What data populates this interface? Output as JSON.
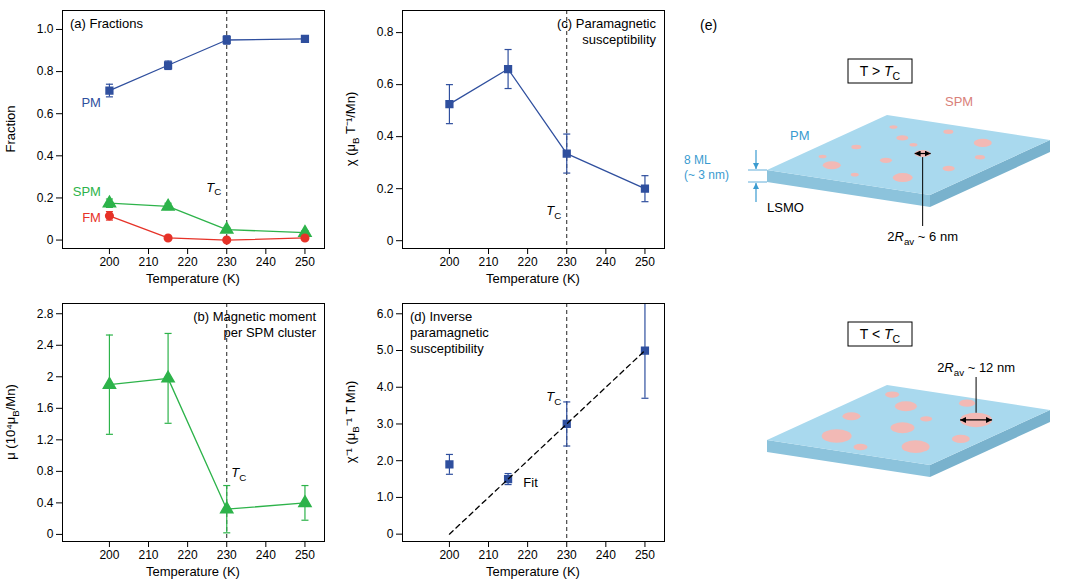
{
  "chart_data": [
    {
      "type": "line",
      "title": "(a) Fractions",
      "x_label": "Temperature (K)",
      "y_label": "Fraction",
      "x": [
        200,
        215,
        230,
        250
      ],
      "series": [
        {
          "name": "PM",
          "color": "#2f4f9e",
          "marker": "square",
          "values": [
            0.71,
            0.83,
            0.95,
            0.955
          ],
          "errors": [
            0.03,
            0.02,
            0.02,
            0.01
          ]
        },
        {
          "name": "SPM",
          "color": "#2db34a",
          "marker": "triangle",
          "values": [
            0.175,
            0.16,
            0.05,
            0.035
          ],
          "errors": [
            0.02,
            0.015,
            0.01,
            0.01
          ]
        },
        {
          "name": "FM",
          "color": "#e63228",
          "marker": "circle",
          "values": [
            0.115,
            0.01,
            0.0,
            0.01
          ],
          "errors": [
            0.02,
            0.005,
            0.005,
            0.005
          ]
        }
      ],
      "xlim": [
        188,
        255
      ],
      "xticks": [
        200,
        210,
        220,
        230,
        240,
        250
      ],
      "ylim": [
        -0.04,
        1.09
      ],
      "yticks": [
        0,
        0.2,
        0.4,
        0.6,
        0.8,
        {
          "value": 1,
          "label": "1.0"
        }
      ],
      "annotations": [
        {
          "type": "vline",
          "x": 230,
          "label": "TC",
          "line_style": "dashed"
        }
      ]
    },
    {
      "type": "line",
      "title": "(b) Magnetic moment per SPM cluster",
      "x_label": "Temperature (K)",
      "y_label": "μ (10⁴μB/Mn)",
      "x": [
        200,
        215,
        230,
        250
      ],
      "series": [
        {
          "color": "#2db34a",
          "marker": "triangle",
          "values": [
            1.9,
            1.98,
            0.32,
            0.4
          ],
          "errors": [
            0.63,
            0.57,
            0.3,
            0.22
          ]
        }
      ],
      "xlim": [
        188,
        255
      ],
      "xticks": [
        200,
        210,
        220,
        230,
        240,
        250
      ],
      "ylim": [
        -0.09,
        2.93
      ],
      "yticks": [
        0,
        0.4,
        0.8,
        1.2,
        1.6,
        2.0,
        2.4,
        2.8
      ],
      "annotations": [
        {
          "type": "vline",
          "x": 230,
          "label": "TC",
          "line_style": "dashed"
        }
      ]
    },
    {
      "type": "line",
      "title": "(c) Paramagnetic susceptibility",
      "x_label": "Temperature (K)",
      "y_label": "χ (μB T⁻¹/Mn)",
      "x": [
        200,
        215,
        230,
        250
      ],
      "series": [
        {
          "color": "#2f4f9e",
          "marker": "square",
          "values": [
            0.525,
            0.66,
            0.335,
            0.2
          ],
          "errors": [
            0.075,
            0.075,
            0.075,
            0.05
          ]
        }
      ],
      "xlim": [
        188,
        255
      ],
      "xticks": [
        200,
        210,
        220,
        230,
        240,
        250
      ],
      "ylim": [
        -0.03,
        0.885
      ],
      "yticks": [
        0,
        0.2,
        0.4,
        0.6,
        0.8
      ],
      "annotations": [
        {
          "type": "vline",
          "x": 230,
          "label": "TC",
          "line_style": "dashed"
        }
      ]
    },
    {
      "type": "scatter",
      "title": "(d) Inverse paramagnetic susceptibility",
      "x_label": "Temperature (K)",
      "y_label": "χ⁻¹ (μB⁻¹ T Mn)",
      "x": [
        200,
        215,
        230,
        250
      ],
      "series": [
        {
          "color": "#2f4f9e",
          "marker": "square",
          "values": [
            1.9,
            1.5,
            3.0,
            5.0
          ],
          "errors": [
            0.27,
            0.15,
            0.6,
            1.3
          ]
        },
        {
          "name": "Fit",
          "type": "line",
          "line_style": "dashed",
          "color": "#000000",
          "x": [
            200,
            250
          ],
          "values": [
            0,
            5
          ]
        }
      ],
      "xlim": [
        188,
        255
      ],
      "xticks": [
        200,
        210,
        220,
        230,
        240,
        250
      ],
      "ylim": [
        -0.2,
        6.28
      ],
      "yticks": [
        0,
        {
          "value": 1,
          "label": "1.0"
        },
        {
          "value": 2,
          "label": "2.0"
        },
        {
          "value": 3,
          "label": "3.0"
        },
        {
          "value": 4,
          "label": "4.0"
        },
        {
          "value": 5,
          "label": "5.0"
        },
        {
          "value": 6,
          "label": "6.0"
        }
      ],
      "annotations": [
        {
          "type": "vline",
          "x": 230,
          "label": "TC",
          "line_style": "dashed"
        }
      ]
    }
  ],
  "diagram": {
    "label": "(e)",
    "panels": [
      {
        "condition": "T > TC",
        "labels": {
          "matrix": "PM",
          "clusters": "SPM",
          "thickness": "8 ML (~ 3 nm)",
          "cluster_size": "2Rav ~ 6 nm",
          "substrate": "LSMO"
        }
      },
      {
        "condition": "T < TC",
        "labels": {
          "cluster_size": "2Rav ~ 12 nm"
        }
      }
    ]
  }
}
